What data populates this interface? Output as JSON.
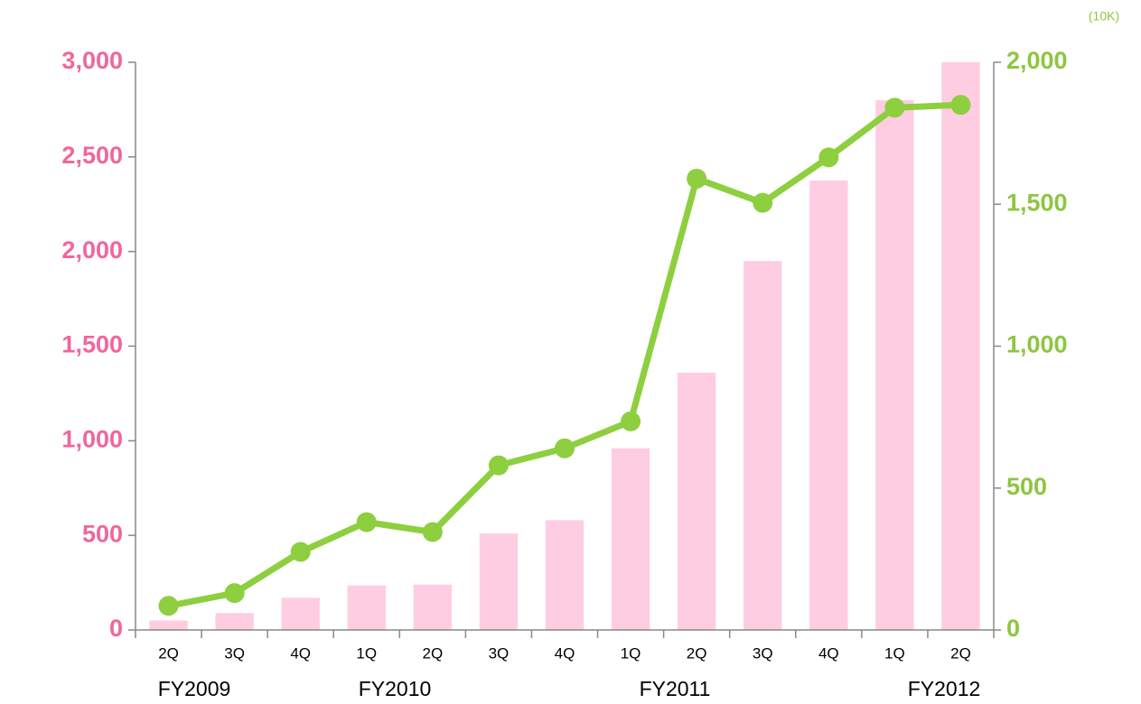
{
  "chart_data": {
    "type": "bar-line",
    "unit_label": "(10K)",
    "categories": [
      "2Q",
      "3Q",
      "4Q",
      "1Q",
      "2Q",
      "3Q",
      "4Q",
      "1Q",
      "2Q",
      "3Q",
      "4Q",
      "1Q",
      "2Q"
    ],
    "group_labels": [
      "FY2009",
      "FY2010",
      "FY2011",
      "FY2012"
    ],
    "series": [
      {
        "type": "bar",
        "color": "#ffcde1",
        "values": [
          50,
          90,
          170,
          235,
          240,
          510,
          580,
          960,
          1360,
          1950,
          2375,
          2800,
          3000
        ]
      },
      {
        "type": "line",
        "axis": "y2",
        "color": "#8dcf3f",
        "values": [
          85,
          130,
          275,
          380,
          345,
          580,
          640,
          735,
          1590,
          1505,
          1665,
          1840,
          1850
        ]
      }
    ],
    "ylim": [
      0,
      3000
    ],
    "yticks": [
      0,
      500,
      {
        "value": 1000,
        "label": "1,000"
      },
      {
        "value": 1500,
        "label": "1,500"
      },
      {
        "value": 2000,
        "label": "2,000"
      },
      {
        "value": 2500,
        "label": "2,500"
      },
      {
        "value": 3000,
        "label": "3,000"
      }
    ],
    "y2lim": [
      0,
      2000
    ],
    "y2ticks": [
      0,
      500,
      {
        "value": 1000,
        "label": "1,000"
      },
      {
        "value": 1500,
        "label": "1,500"
      },
      {
        "value": 2000,
        "label": "2,000"
      }
    ]
  }
}
